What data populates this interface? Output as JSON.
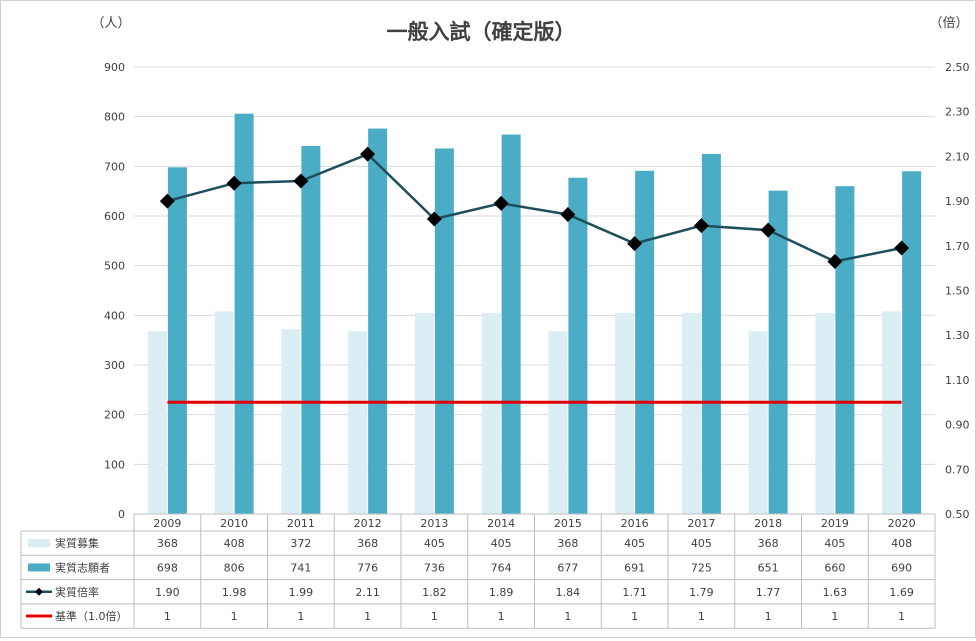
{
  "chart_data": {
    "type": "bar",
    "title": "一般入試（確定版）",
    "ylabel_left": "（人）",
    "ylabel_right": "（倍）",
    "categories": [
      "2009",
      "2010",
      "2011",
      "2012",
      "2013",
      "2014",
      "2015",
      "2016",
      "2017",
      "2018",
      "2019",
      "2020"
    ],
    "y_left": {
      "min": 0,
      "max": 900,
      "ticks": [
        "0",
        "100",
        "200",
        "300",
        "400",
        "500",
        "600",
        "700",
        "800",
        "900"
      ]
    },
    "y_right": {
      "min": 0.5,
      "max": 2.5,
      "ticks": [
        "0.50",
        "0.70",
        "0.90",
        "1.10",
        "1.30",
        "1.50",
        "1.70",
        "1.90",
        "2.10",
        "2.30",
        "2.50"
      ]
    },
    "grid": true,
    "legend": "data-table-bottom",
    "series": [
      {
        "name": "実質募集",
        "kind": "bar",
        "axis": "left",
        "color": "#daeef3",
        "values": [
          368,
          408,
          372,
          368,
          405,
          405,
          368,
          405,
          405,
          368,
          405,
          408
        ]
      },
      {
        "name": "実質志願者",
        "kind": "bar",
        "axis": "left",
        "color": "#4bacc6",
        "values": [
          698,
          806,
          741,
          776,
          736,
          764,
          677,
          691,
          725,
          651,
          660,
          690
        ]
      },
      {
        "name": "実質倍率",
        "kind": "line",
        "axis": "right",
        "color": "#1e4e5e",
        "marker": "diamond",
        "values": [
          1.9,
          1.98,
          1.99,
          2.11,
          1.82,
          1.89,
          1.84,
          1.71,
          1.79,
          1.77,
          1.63,
          1.69
        ],
        "display": [
          "1.90",
          "1.98",
          "1.99",
          "2.11",
          "1.82",
          "1.89",
          "1.84",
          "1.71",
          "1.79",
          "1.77",
          "1.63",
          "1.69"
        ]
      },
      {
        "name": "基準（1.0倍）",
        "kind": "line",
        "axis": "right",
        "color": "#e00000",
        "values": [
          1,
          1,
          1,
          1,
          1,
          1,
          1,
          1,
          1,
          1,
          1,
          1
        ],
        "display": [
          "1",
          "1",
          "1",
          "1",
          "1",
          "1",
          "1",
          "1",
          "1",
          "1",
          "1",
          "1"
        ]
      }
    ]
  }
}
